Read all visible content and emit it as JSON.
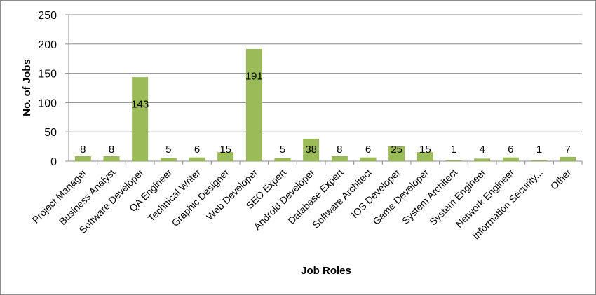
{
  "chart_data": {
    "type": "bar",
    "title": "",
    "xlabel": "Job Roles",
    "ylabel": "No. of Jobs",
    "ylim": [
      0,
      250
    ],
    "yticks": [
      0,
      50,
      100,
      150,
      200,
      250
    ],
    "grid": true,
    "legend": "none",
    "bar_color": "#9bbb59",
    "categories": [
      "Project Manager",
      "Business Analyst",
      "Software Developer",
      "QA Engineer",
      "Technical Writer",
      "Graphic Designer",
      "Web Developer",
      "SEO Expert",
      "Android Developer",
      "Database Expert",
      "Software Architect",
      "IOS Developer",
      "Game Developer",
      "System Architect",
      "System Engineer",
      "Network Engineer",
      "Information Security...",
      "Other"
    ],
    "values": [
      8,
      8,
      143,
      5,
      6,
      15,
      191,
      5,
      38,
      8,
      6,
      25,
      15,
      1,
      4,
      6,
      1,
      7
    ]
  }
}
